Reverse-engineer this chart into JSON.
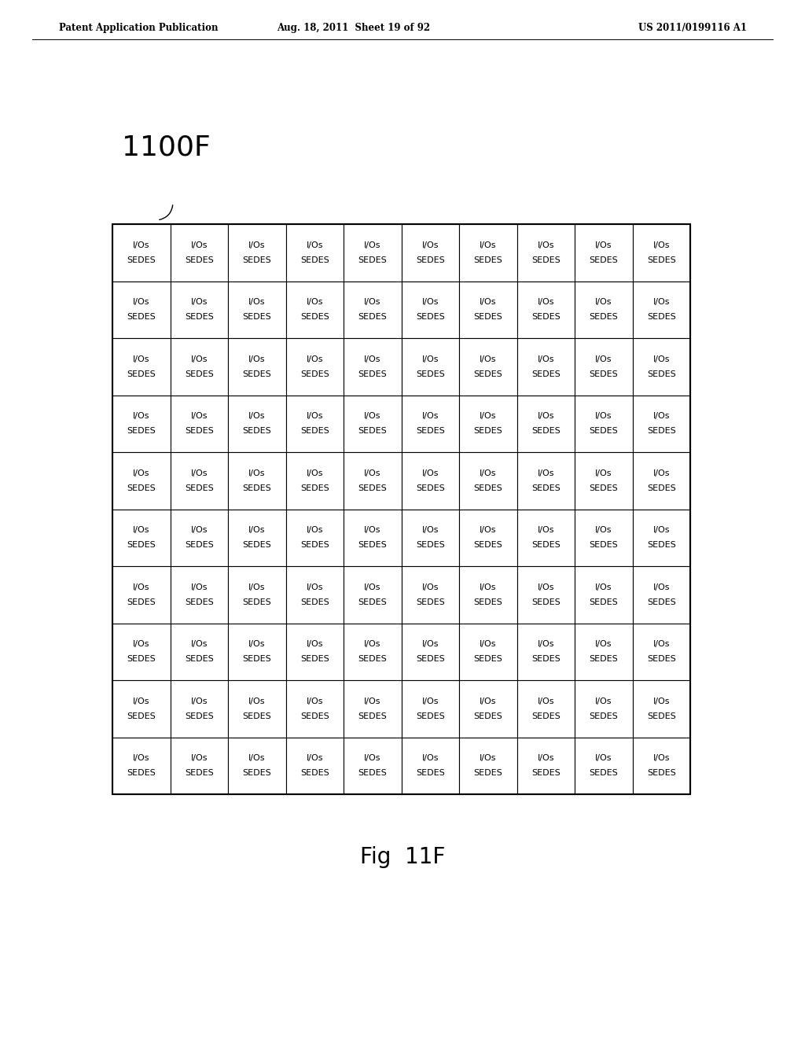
{
  "page_header_left": "Patent Application Publication",
  "page_header_center": "Aug. 18, 2011  Sheet 19 of 92",
  "page_header_right": "US 2011/0199116 A1",
  "figure_label": "1100F",
  "figure_caption": "Fig  11F",
  "cell_line1": "I/Os",
  "cell_line2": "SEDES",
  "grid_rows": 10,
  "grid_cols": 10,
  "background_color": "#ffffff",
  "text_color": "#000000",
  "grid_line_color": "#000000",
  "header_fontsize": 8.5,
  "label_fontsize": 26,
  "caption_fontsize": 20,
  "cell_fontsize1": 8,
  "cell_fontsize2": 8
}
